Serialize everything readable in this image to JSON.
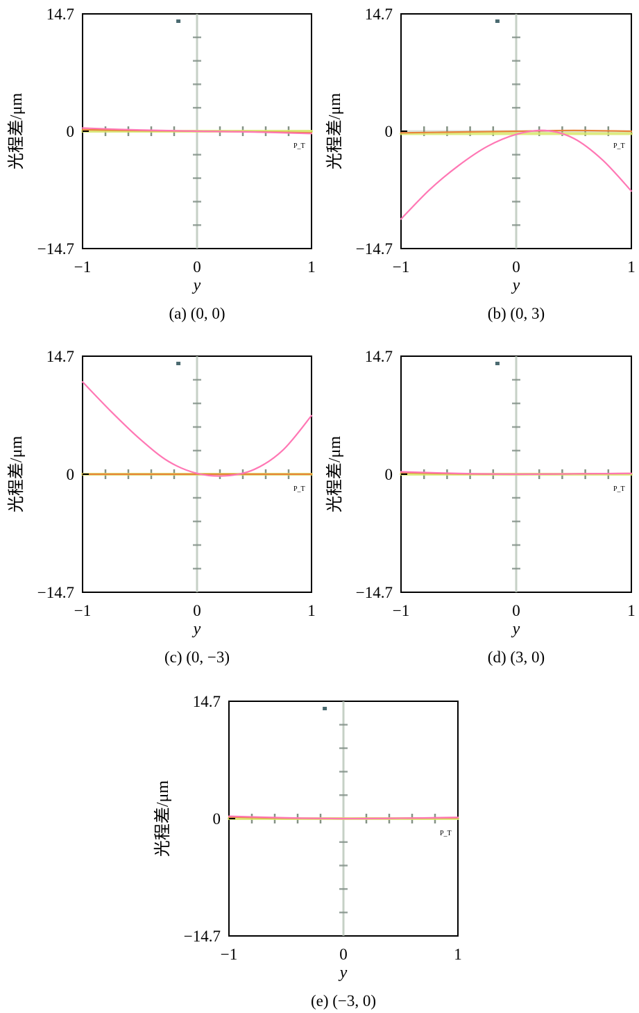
{
  "figure": {
    "panels_count": 5
  },
  "chart_data": [
    {
      "type": "line",
      "caption": "(a) (0, 0)",
      "xlabel": "y",
      "ylabel": "光程差/μm",
      "xlim": [
        -1,
        1
      ],
      "ylim": [
        -14.7,
        14.7
      ],
      "x_ticks": [
        "−1",
        "0",
        "1"
      ],
      "y_ticks": [
        "−14.7",
        "0",
        "14.7"
      ],
      "grid": false,
      "legend": "none",
      "colors": {
        "primary": "#ff77b4",
        "secondary": "#e8843a",
        "tertiary": "#d8e86a",
        "axis_cross": "#b8c4b8"
      },
      "marker_labels": [
        "P_T"
      ],
      "series": [
        {
          "color": "#ff77b4",
          "x": [
            -1,
            -0.5,
            0,
            0.5,
            1
          ],
          "values": [
            0.4,
            0.15,
            0.0,
            -0.1,
            -0.3
          ]
        },
        {
          "color": "#e8843a",
          "x": [
            -1,
            -0.5,
            0,
            0.5,
            1
          ],
          "values": [
            0.2,
            0.08,
            0.0,
            -0.08,
            -0.2
          ]
        },
        {
          "color": "#d8e86a",
          "x": [
            -1,
            -0.5,
            0,
            0.5,
            1
          ],
          "values": [
            0.0,
            0.0,
            0.0,
            0.0,
            0.0
          ]
        }
      ]
    },
    {
      "type": "line",
      "caption": "(b) (0, 3)",
      "xlabel": "y",
      "ylabel": "光程差/μm",
      "xlim": [
        -1,
        1
      ],
      "ylim": [
        -14.7,
        14.7
      ],
      "x_ticks": [
        "−1",
        "0",
        "1"
      ],
      "y_ticks": [
        "−14.7",
        "0",
        "14.7"
      ],
      "grid": false,
      "legend": "none",
      "colors": {
        "primary": "#ff77b4",
        "secondary": "#e8843a",
        "tertiary": "#d8e86a",
        "axis_cross": "#b8c4b8"
      },
      "marker_labels": [
        "P_T"
      ],
      "series": [
        {
          "color": "#ff77b4",
          "x": [
            -1,
            -0.75,
            -0.5,
            -0.25,
            0,
            0.25,
            0.5,
            0.75,
            1
          ],
          "values": [
            -11.0,
            -7.3,
            -4.3,
            -1.9,
            -0.4,
            0.1,
            -0.9,
            -3.6,
            -7.5
          ]
        },
        {
          "color": "#e8843a",
          "x": [
            -1,
            -0.5,
            0,
            0.5,
            1
          ],
          "values": [
            -0.2,
            -0.1,
            0.0,
            0.1,
            0.0
          ]
        },
        {
          "color": "#d8e86a",
          "x": [
            -1,
            -0.5,
            0,
            0.5,
            1
          ],
          "values": [
            -0.3,
            -0.3,
            -0.3,
            -0.3,
            -0.3
          ]
        }
      ]
    },
    {
      "type": "line",
      "caption": "(c) (0, −3)",
      "xlabel": "y",
      "ylabel": "光程差/μm",
      "xlim": [
        -1,
        1
      ],
      "ylim": [
        -14.7,
        14.7
      ],
      "x_ticks": [
        "−1",
        "0",
        "1"
      ],
      "y_ticks": [
        "−14.7",
        "0",
        "14.7"
      ],
      "grid": false,
      "legend": "none",
      "colors": {
        "primary": "#ff77b4",
        "secondary": "#e8843a",
        "tertiary": "#d8e86a",
        "axis_cross": "#b8c4b8"
      },
      "marker_labels": [
        "P_T"
      ],
      "series": [
        {
          "color": "#ff77b4",
          "x": [
            -1,
            -0.75,
            -0.5,
            -0.25,
            0,
            0.25,
            0.5,
            0.75,
            1
          ],
          "values": [
            11.5,
            7.8,
            4.4,
            1.6,
            0.1,
            -0.2,
            0.6,
            3.0,
            7.3
          ]
        },
        {
          "color": "#e8843a",
          "x": [
            -1,
            -0.5,
            0,
            0.5,
            1
          ],
          "values": [
            0.0,
            0.0,
            0.0,
            0.0,
            0.0
          ]
        },
        {
          "color": "#d8e86a",
          "x": [
            -1,
            -0.5,
            0,
            0.5,
            1
          ],
          "values": [
            0.0,
            0.0,
            0.0,
            0.0,
            0.0
          ]
        }
      ]
    },
    {
      "type": "line",
      "caption": "(d) (3, 0)",
      "xlabel": "y",
      "ylabel": "光程差/μm",
      "xlim": [
        -1,
        1
      ],
      "ylim": [
        -14.7,
        14.7
      ],
      "x_ticks": [
        "−1",
        "0",
        "1"
      ],
      "y_ticks": [
        "−14.7",
        "0",
        "14.7"
      ],
      "grid": false,
      "legend": "none",
      "colors": {
        "primary": "#ff77b4",
        "secondary": "#e8843a",
        "tertiary": "#d8e86a",
        "axis_cross": "#b8c4b8"
      },
      "marker_labels": [
        "P_T"
      ],
      "series": [
        {
          "color": "#ff77b4",
          "x": [
            -1,
            -0.5,
            0,
            0.5,
            1
          ],
          "values": [
            0.3,
            0.1,
            0.0,
            0.05,
            0.1
          ]
        },
        {
          "color": "#e8843a",
          "x": [
            -1,
            -0.5,
            0,
            0.5,
            1
          ],
          "values": [
            0.2,
            0.05,
            0.0,
            0.05,
            0.1
          ]
        },
        {
          "color": "#d8e86a",
          "x": [
            -1,
            -0.5,
            0,
            0.5,
            1
          ],
          "values": [
            0.0,
            0.0,
            0.0,
            0.0,
            0.0
          ]
        }
      ]
    },
    {
      "type": "line",
      "caption": "(e) (−3, 0)",
      "xlabel": "y",
      "ylabel": "光程差/μm",
      "xlim": [
        -1,
        1
      ],
      "ylim": [
        -14.7,
        14.7
      ],
      "x_ticks": [
        "−1",
        "0",
        "1"
      ],
      "y_ticks": [
        "−14.7",
        "0",
        "14.7"
      ],
      "grid": false,
      "legend": "none",
      "colors": {
        "primary": "#ff77b4",
        "secondary": "#e8843a",
        "tertiary": "#d8e86a",
        "axis_cross": "#b8c4b8"
      },
      "marker_labels": [
        "P_T"
      ],
      "series": [
        {
          "color": "#ff77b4",
          "x": [
            -1,
            -0.5,
            0,
            0.5,
            1
          ],
          "values": [
            0.3,
            0.1,
            0.0,
            0.05,
            0.15
          ]
        },
        {
          "color": "#e8843a",
          "x": [
            -1,
            -0.5,
            0,
            0.5,
            1
          ],
          "values": [
            0.2,
            0.05,
            0.0,
            0.05,
            0.1
          ]
        },
        {
          "color": "#d8e86a",
          "x": [
            -1,
            -0.5,
            0,
            0.5,
            1
          ],
          "values": [
            0.0,
            0.0,
            0.0,
            0.0,
            0.0
          ]
        }
      ]
    }
  ]
}
